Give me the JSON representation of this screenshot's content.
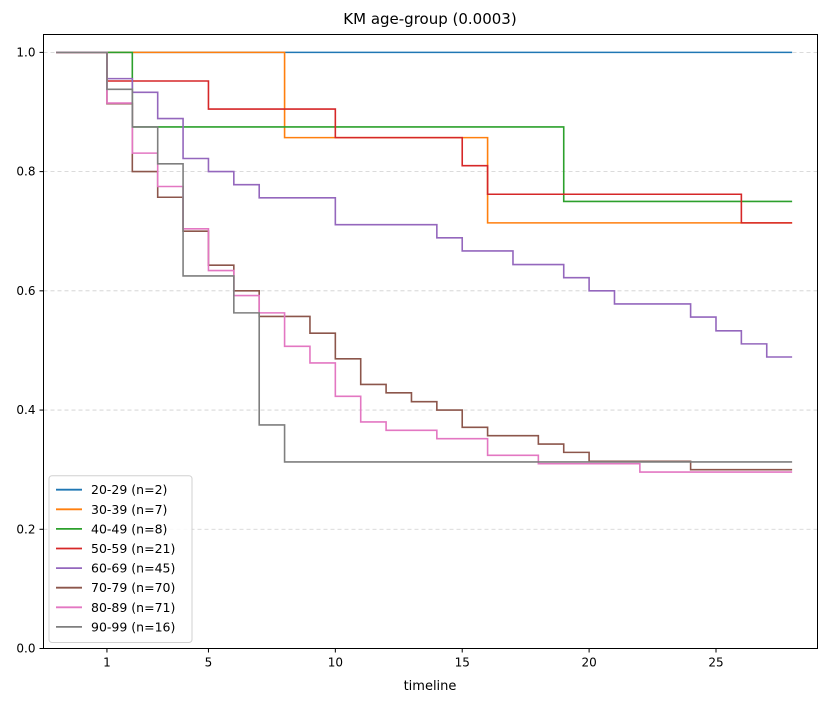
{
  "chart_data": {
    "type": "line",
    "step": true,
    "title": "KM age-group (0.0003)",
    "xlabel": "timeline",
    "ylabel": "",
    "xlim": [
      -1.5,
      29.0
    ],
    "ylim": [
      0.0,
      1.03
    ],
    "xticks": [
      1,
      5,
      10,
      15,
      20,
      25
    ],
    "xtick_labels": [
      "1",
      "5",
      "10",
      "15",
      "20",
      "25"
    ],
    "yticks": [
      0.0,
      0.2,
      0.4,
      0.6,
      0.8,
      1.0
    ],
    "ytick_labels": [
      "0.0",
      "0.2",
      "0.4",
      "0.6",
      "0.8",
      "1.0"
    ],
    "grid": "horizontal, dashed",
    "legend_position": "lower-left",
    "series": [
      {
        "name": "20-29 (n=2)",
        "color": "#1f77b4",
        "steps": [
          [
            -1,
            1.0
          ]
        ],
        "end": 28
      },
      {
        "name": "30-39 (n=7)",
        "color": "#ff7f0e",
        "steps": [
          [
            -1,
            1.0
          ],
          [
            8,
            0.857
          ],
          [
            16,
            0.714
          ]
        ],
        "end": 28
      },
      {
        "name": "40-49 (n=8)",
        "color": "#2ca02c",
        "steps": [
          [
            -1,
            1.0
          ],
          [
            2,
            0.875
          ],
          [
            19,
            0.75
          ]
        ],
        "end": 28
      },
      {
        "name": "50-59 (n=21)",
        "color": "#d62728",
        "steps": [
          [
            -1,
            1.0
          ],
          [
            1,
            0.952
          ],
          [
            5,
            0.905
          ],
          [
            10,
            0.857
          ],
          [
            15,
            0.81
          ],
          [
            16,
            0.762
          ],
          [
            26,
            0.714
          ]
        ],
        "end": 28
      },
      {
        "name": "60-69 (n=45)",
        "color": "#9467bd",
        "steps": [
          [
            -1,
            1.0
          ],
          [
            1,
            0.956
          ],
          [
            2,
            0.933
          ],
          [
            3,
            0.889
          ],
          [
            4,
            0.822
          ],
          [
            5,
            0.8
          ],
          [
            6,
            0.778
          ],
          [
            7,
            0.756
          ],
          [
            10,
            0.711
          ],
          [
            14,
            0.689
          ],
          [
            15,
            0.667
          ],
          [
            17,
            0.644
          ],
          [
            19,
            0.622
          ],
          [
            20,
            0.6
          ],
          [
            21,
            0.578
          ],
          [
            24,
            0.556
          ],
          [
            25,
            0.533
          ],
          [
            26,
            0.511
          ],
          [
            27,
            0.489
          ]
        ],
        "end": 28
      },
      {
        "name": "70-79 (n=70)",
        "color": "#8c564b",
        "steps": [
          [
            -1,
            1.0
          ],
          [
            1,
            0.914
          ],
          [
            2,
            0.8
          ],
          [
            3,
            0.757
          ],
          [
            4,
            0.7
          ],
          [
            5,
            0.643
          ],
          [
            6,
            0.6
          ],
          [
            7,
            0.557
          ],
          [
            9,
            0.529
          ],
          [
            10,
            0.486
          ],
          [
            11,
            0.443
          ],
          [
            12,
            0.429
          ],
          [
            13,
            0.414
          ],
          [
            14,
            0.4
          ],
          [
            15,
            0.371
          ],
          [
            16,
            0.357
          ],
          [
            18,
            0.343
          ],
          [
            19,
            0.329
          ],
          [
            20,
            0.314
          ],
          [
            24,
            0.3
          ]
        ],
        "end": 28
      },
      {
        "name": "80-89 (n=71)",
        "color": "#e377c2",
        "steps": [
          [
            -1,
            1.0
          ],
          [
            1,
            0.915
          ],
          [
            2,
            0.831
          ],
          [
            3,
            0.775
          ],
          [
            4,
            0.704
          ],
          [
            5,
            0.634
          ],
          [
            6,
            0.592
          ],
          [
            7,
            0.563
          ],
          [
            8,
            0.507
          ],
          [
            9,
            0.479
          ],
          [
            10,
            0.423
          ],
          [
            11,
            0.38
          ],
          [
            12,
            0.366
          ],
          [
            14,
            0.352
          ],
          [
            16,
            0.324
          ],
          [
            18,
            0.31
          ],
          [
            22,
            0.296
          ]
        ],
        "end": 28
      },
      {
        "name": "90-99 (n=16)",
        "color": "#7f7f7f",
        "steps": [
          [
            -1,
            1.0
          ],
          [
            1,
            0.938
          ],
          [
            2,
            0.875
          ],
          [
            3,
            0.813
          ],
          [
            4,
            0.625
          ],
          [
            6,
            0.563
          ],
          [
            7,
            0.375
          ],
          [
            8,
            0.313
          ]
        ],
        "end": 28
      }
    ]
  }
}
